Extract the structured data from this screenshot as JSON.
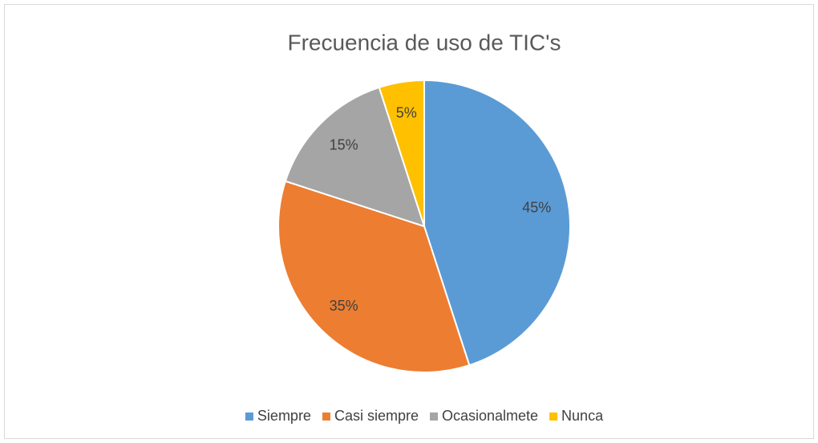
{
  "chart_data": {
    "type": "pie",
    "title": "Frecuencia de uso de TIC's",
    "categories": [
      "Siempre",
      "Casi siempre",
      "Ocasionalmete",
      "Nunca"
    ],
    "values": [
      45,
      35,
      15,
      5
    ],
    "value_labels": [
      "45%",
      "35%",
      "15%",
      "5%"
    ],
    "colors": [
      "#5b9bd5",
      "#ed7d31",
      "#a5a5a5",
      "#ffc000"
    ],
    "legend": "bottom"
  }
}
